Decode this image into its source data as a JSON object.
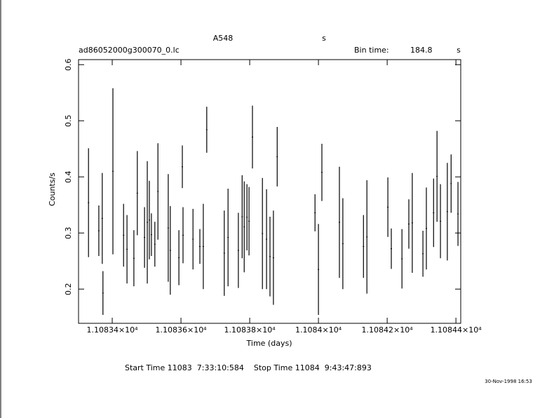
{
  "chart_data": {
    "type": "errorbar",
    "title": "A548",
    "title_right": "s",
    "subtitle": "ad86052000g300070_0.lc",
    "bin_time_label": "Bin time:",
    "bin_time": 184.8,
    "bin_time_unit": "s",
    "x_label": "Time (days)",
    "y_label": "Counts/s",
    "footer": "Start Time 11083  7:33:10:584    Stop Time 11084  9:43:47:893",
    "timestamp": "30-Nov-1998 16:53",
    "color": "#000000",
    "xlim": [
      11083.302,
      11084.414
    ],
    "ylim": [
      0.139,
      0.609
    ],
    "xticks": [
      {
        "value": 11083.4,
        "label": "1.10834×10⁴"
      },
      {
        "value": 11083.6,
        "label": "1.10836×10⁴"
      },
      {
        "value": 11083.8,
        "label": "1.10838×10⁴"
      },
      {
        "value": 11084.0,
        "label": "1.1084×10⁴"
      },
      {
        "value": 11084.2,
        "label": "1.10842×10⁴"
      },
      {
        "value": 11084.4,
        "label": "1.10844×10⁴"
      }
    ],
    "yticks": [
      0.2,
      0.3,
      0.4,
      0.5,
      0.6
    ],
    "x": [
      11083.331,
      11083.361,
      11083.371,
      11083.373,
      11083.402,
      11083.433,
      11083.443,
      11083.463,
      11083.473,
      11083.494,
      11083.502,
      11083.508,
      11083.514,
      11083.524,
      11083.533,
      11083.563,
      11083.569,
      11083.594,
      11083.604,
      11083.606,
      11083.635,
      11083.655,
      11083.665,
      11083.675,
      11083.726,
      11083.737,
      11083.767,
      11083.778,
      11083.784,
      11083.792,
      11083.798,
      11083.808,
      11083.837,
      11083.849,
      11083.859,
      11083.869,
      11083.88,
      11083.99,
      11084.0,
      11084.01,
      11084.061,
      11084.071,
      11084.131,
      11084.141,
      11084.202,
      11084.212,
      11084.243,
      11084.263,
      11084.273,
      11084.304,
      11084.314,
      11084.335,
      11084.345,
      11084.355,
      11084.375,
      11084.386,
      11084.406
    ],
    "values": [
      0.354,
      0.304,
      0.326,
      0.193,
      0.41,
      0.296,
      0.271,
      0.255,
      0.371,
      0.292,
      0.319,
      0.323,
      0.297,
      0.28,
      0.374,
      0.309,
      0.269,
      0.256,
      0.418,
      0.296,
      0.289,
      0.276,
      0.276,
      0.484,
      0.264,
      0.292,
      0.269,
      0.329,
      0.311,
      0.328,
      0.321,
      0.471,
      0.299,
      0.289,
      0.258,
      0.256,
      0.436,
      0.336,
      0.235,
      0.408,
      0.319,
      0.281,
      0.276,
      0.293,
      0.346,
      0.272,
      0.254,
      0.316,
      0.318,
      0.263,
      0.308,
      0.336,
      0.401,
      0.321,
      0.338,
      0.388,
      0.334
    ],
    "errors": [
      0.097,
      0.045,
      0.081,
      0.039,
      0.148,
      0.056,
      0.061,
      0.05,
      0.075,
      0.054,
      0.109,
      0.07,
      0.038,
      0.04,
      0.086,
      0.096,
      0.079,
      0.049,
      0.038,
      0.05,
      0.054,
      0.031,
      0.076,
      0.041,
      0.076,
      0.087,
      0.067,
      0.074,
      0.081,
      0.059,
      0.061,
      0.056,
      0.099,
      0.089,
      0.071,
      0.084,
      0.053,
      0.033,
      0.081,
      0.051,
      0.099,
      0.081,
      0.056,
      0.101,
      0.053,
      0.036,
      0.053,
      0.044,
      0.089,
      0.041,
      0.073,
      0.061,
      0.081,
      0.066,
      0.087,
      0.052,
      0.057
    ]
  }
}
